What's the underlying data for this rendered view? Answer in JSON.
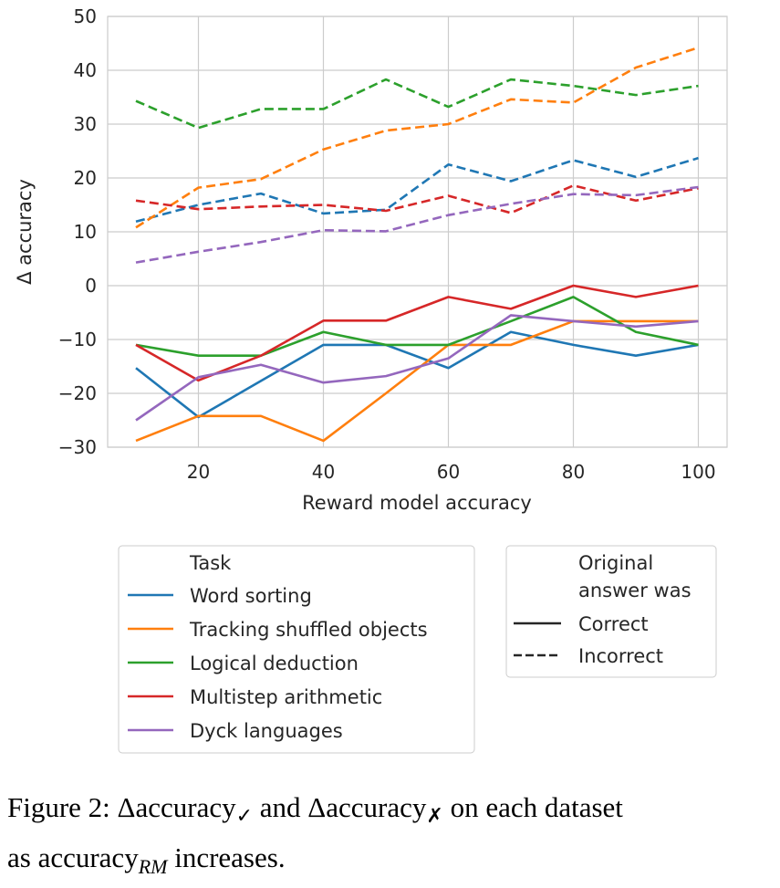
{
  "chart_data": {
    "type": "line",
    "xlabel": "Reward model accuracy",
    "ylabel": "Δ accuracy",
    "xlim": [
      5,
      105
    ],
    "ylim": [
      -30,
      50
    ],
    "xticks": [
      20,
      40,
      60,
      80,
      100
    ],
    "yticks": [
      -30,
      -20,
      -10,
      0,
      10,
      20,
      30,
      40,
      50
    ],
    "ytick_labels": [
      "−30",
      "−20",
      "−10",
      "0",
      "10",
      "20",
      "30",
      "40",
      "50"
    ],
    "grid": true,
    "x": [
      10,
      20,
      30,
      40,
      50,
      60,
      70,
      80,
      90,
      100
    ],
    "series": [
      {
        "name": "Word sorting",
        "task": "Word sorting",
        "style": "Correct",
        "color": "#1f77b4",
        "values": [
          -15.3,
          -24.4,
          -17.7,
          -11,
          -11,
          -15.3,
          -8.6,
          -11,
          -13,
          -11
        ]
      },
      {
        "name": "Tracking shuffled objects",
        "task": "Tracking shuffled objects",
        "style": "Correct",
        "color": "#ff7f0e",
        "values": [
          -28.8,
          -24.2,
          -24.2,
          -28.8,
          -20,
          -11,
          -11,
          -6.6,
          -6.6,
          -6.6
        ]
      },
      {
        "name": "Logical deduction",
        "task": "Logical deduction",
        "style": "Correct",
        "color": "#2ca02c",
        "values": [
          -11,
          -13,
          -13,
          -8.6,
          -11,
          -11,
          -6.6,
          -2.1,
          -8.6,
          -11
        ]
      },
      {
        "name": "Multistep arithmetic",
        "task": "Multistep arithmetic",
        "style": "Correct",
        "color": "#d62728",
        "values": [
          -11,
          -17.6,
          -13,
          -6.5,
          -6.5,
          -2.1,
          -4.3,
          0,
          -2.1,
          0
        ]
      },
      {
        "name": "Dyck languages",
        "task": "Dyck languages",
        "style": "Correct",
        "color": "#9467bd",
        "values": [
          -25,
          -17,
          -14.7,
          -18,
          -16.8,
          -13.5,
          -5.5,
          -6.6,
          -7.6,
          -6.6
        ]
      },
      {
        "name": "Word sorting (Incorrect)",
        "task": "Word sorting",
        "style": "Incorrect",
        "color": "#1f77b4",
        "values": [
          11.9,
          15.0,
          17.1,
          13.4,
          14.1,
          22.5,
          19.4,
          23.3,
          20.2,
          23.7
        ]
      },
      {
        "name": "Tracking shuffled objects (Incorrect)",
        "task": "Tracking shuffled objects",
        "style": "Incorrect",
        "color": "#ff7f0e",
        "values": [
          10.8,
          18.2,
          19.8,
          25.3,
          28.8,
          30.0,
          34.6,
          34.0,
          40.5,
          44.2
        ]
      },
      {
        "name": "Logical deduction (Incorrect)",
        "task": "Logical deduction",
        "style": "Incorrect",
        "color": "#2ca02c",
        "values": [
          34.3,
          29.3,
          32.8,
          32.8,
          38.3,
          33.2,
          38.3,
          37.1,
          35.4,
          37.1
        ]
      },
      {
        "name": "Multistep arithmetic (Incorrect)",
        "task": "Multistep arithmetic",
        "style": "Incorrect",
        "color": "#d62728",
        "values": [
          15.8,
          14.2,
          14.7,
          15.0,
          13.9,
          16.7,
          13.5,
          18.6,
          15.8,
          18.1
        ]
      },
      {
        "name": "Dyck languages (Incorrect)",
        "task": "Dyck languages",
        "style": "Incorrect",
        "color": "#9467bd",
        "values": [
          4.3,
          6.3,
          8.1,
          10.3,
          10.1,
          13.1,
          15.2,
          17.0,
          16.8,
          18.3
        ]
      }
    ],
    "legend_task": {
      "title": "Task",
      "entries": [
        {
          "label": "Word sorting",
          "color": "#1f77b4"
        },
        {
          "label": "Tracking shuffled objects",
          "color": "#ff7f0e"
        },
        {
          "label": "Logical deduction",
          "color": "#2ca02c"
        },
        {
          "label": "Multistep arithmetic",
          "color": "#d62728"
        },
        {
          "label": "Dyck languages",
          "color": "#9467bd"
        }
      ],
      "placement": "bottom-left"
    },
    "legend_style": {
      "title_line1": "Original",
      "title_line2": "answer was",
      "entries": [
        {
          "label": "Correct",
          "dash": "solid"
        },
        {
          "label": "Incorrect",
          "dash": "dashed"
        }
      ],
      "placement": "bottom-right"
    }
  },
  "caption": {
    "prefix": "Figure 2: Δaccuracy",
    "check": "✓",
    "middle": " and Δaccuracy",
    "cross": "✗",
    "suffix": " on each dataset",
    "line2_prefix": "as accuracy",
    "line2_sub": "RM",
    "line2_suffix": " increases."
  }
}
